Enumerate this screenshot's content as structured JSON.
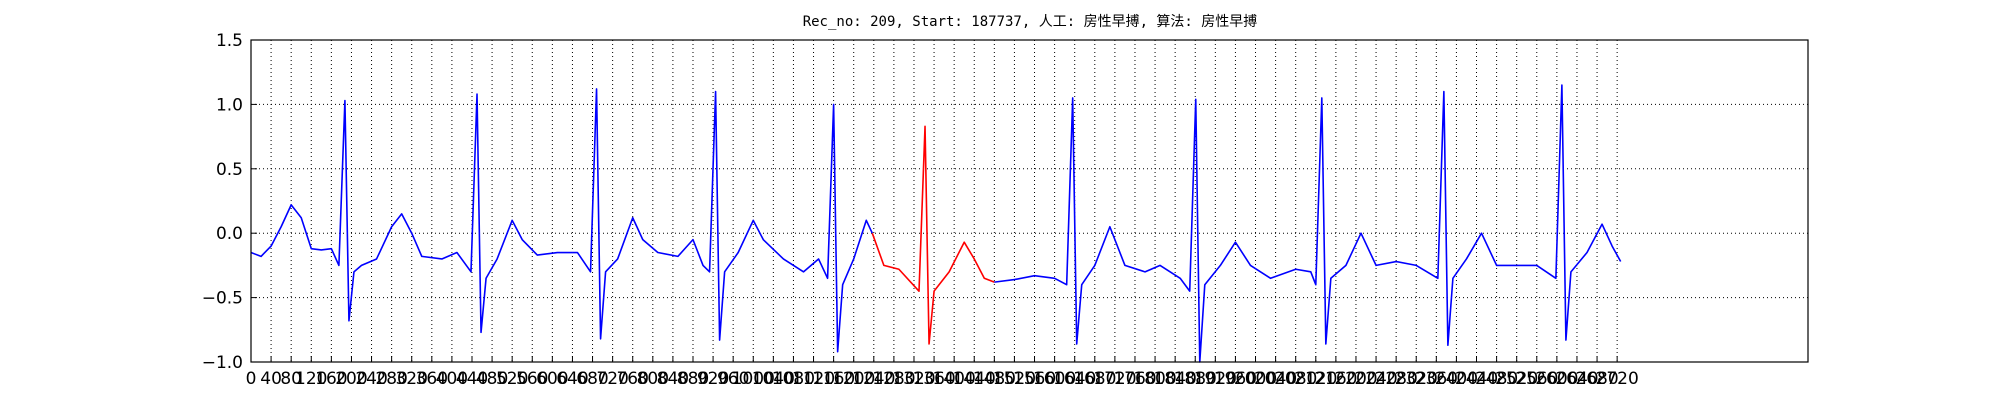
{
  "chart_data": {
    "type": "line",
    "title": "Rec_no: 209, Start: 187737, 人工: 房性早搏, 算法: 房性早搏",
    "xlim": [
      0,
      3100
    ],
    "xticks": [
      0,
      40,
      80,
      120,
      160,
      200,
      240,
      280,
      320,
      360,
      400,
      440,
      480,
      520,
      560,
      600,
      640,
      680,
      720,
      760,
      800,
      840,
      880,
      920,
      960,
      1000,
      1040,
      1080,
      1120,
      1160,
      1200,
      1240,
      1280,
      1320,
      1360,
      1400,
      1440,
      1480,
      1520,
      1560,
      1600,
      1640,
      1680,
      1720,
      1760,
      1800,
      1840,
      1880,
      1920,
      1960,
      2000,
      2040,
      2080,
      2120,
      2160,
      2200,
      2240,
      2280,
      2320,
      2360,
      2400,
      2440,
      2480,
      2520,
      2560,
      2600,
      2640,
      2680,
      2720
    ],
    "ylim": [
      -1,
      1.5
    ],
    "yticks": [
      {
        "value": -1,
        "label": "−1.0"
      },
      {
        "value": -0.5,
        "label": "−0.5"
      },
      {
        "value": 0,
        "label": "0.0"
      },
      {
        "value": 0.5,
        "label": "0.5"
      },
      {
        "value": 1,
        "label": "1.0"
      },
      {
        "value": 1.5,
        "label": "1.5"
      }
    ],
    "grid": true,
    "series": [
      {
        "color": "#0000ff",
        "x": [
          0,
          20,
          40,
          60,
          80,
          100,
          120,
          140,
          160,
          175,
          187,
          195,
          205,
          220,
          250,
          280,
          300,
          320,
          340,
          380,
          410,
          438,
          450,
          458,
          468,
          490,
          520,
          540,
          570,
          610,
          650,
          676,
          688,
          696,
          706,
          730,
          760,
          780,
          810,
          850,
          880,
          900,
          913,
          925,
          933,
          943,
          970,
          1000,
          1020,
          1060,
          1100,
          1130,
          1148,
          1160,
          1168,
          1178,
          1200,
          1225,
          1237
        ],
        "values": [
          -0.15,
          -0.18,
          -0.1,
          0.05,
          0.22,
          0.12,
          -0.12,
          -0.13,
          -0.12,
          -0.25,
          1.03,
          -0.68,
          -0.3,
          -0.25,
          -0.2,
          0.05,
          0.15,
          0.0,
          -0.18,
          -0.2,
          -0.15,
          -0.3,
          1.08,
          -0.77,
          -0.35,
          -0.2,
          0.1,
          -0.05,
          -0.17,
          -0.15,
          -0.15,
          -0.3,
          1.12,
          -0.82,
          -0.3,
          -0.2,
          0.12,
          -0.05,
          -0.15,
          -0.18,
          -0.05,
          -0.25,
          -0.3,
          1.1,
          -0.83,
          -0.3,
          -0.15,
          0.1,
          -0.05,
          -0.2,
          -0.3,
          -0.2,
          -0.35,
          1.0,
          -0.92,
          -0.4,
          -0.2,
          0.1,
          0.0
        ]
      },
      {
        "color": "#ff0000",
        "x": [
          1237,
          1260,
          1290,
          1330,
          1342,
          1350,
          1360,
          1390,
          1420,
          1440,
          1460,
          1480
        ],
        "values": [
          0.0,
          -0.25,
          -0.28,
          -0.45,
          0.83,
          -0.86,
          -0.45,
          -0.3,
          -0.07,
          -0.2,
          -0.35,
          -0.38
        ]
      },
      {
        "color": "#0000ff",
        "x": [
          1480,
          1520,
          1560,
          1600,
          1624,
          1636,
          1644,
          1654,
          1680,
          1710,
          1740,
          1780,
          1810,
          1850,
          1869,
          1881,
          1889,
          1899,
          1930,
          1960,
          1990,
          2030,
          2080,
          2110,
          2120,
          2132,
          2140,
          2150,
          2180,
          2210,
          2240,
          2280,
          2320,
          2363,
          2375,
          2383,
          2393,
          2420,
          2450,
          2480,
          2530,
          2560,
          2598,
          2610,
          2618,
          2628,
          2660,
          2690,
          2710,
          2727
        ],
        "values": [
          -0.38,
          -0.36,
          -0.33,
          -0.35,
          -0.4,
          1.05,
          -0.86,
          -0.4,
          -0.25,
          0.05,
          -0.25,
          -0.3,
          -0.25,
          -0.35,
          -0.45,
          1.04,
          -1.0,
          -0.4,
          -0.25,
          -0.07,
          -0.25,
          -0.35,
          -0.28,
          -0.3,
          -0.4,
          1.05,
          -0.86,
          -0.35,
          -0.25,
          0.0,
          -0.25,
          -0.22,
          -0.25,
          -0.35,
          1.1,
          -0.87,
          -0.35,
          -0.2,
          0.0,
          -0.25,
          -0.25,
          -0.25,
          -0.35,
          1.15,
          -0.83,
          -0.3,
          -0.15,
          0.07,
          -0.1,
          -0.22
        ]
      }
    ]
  }
}
